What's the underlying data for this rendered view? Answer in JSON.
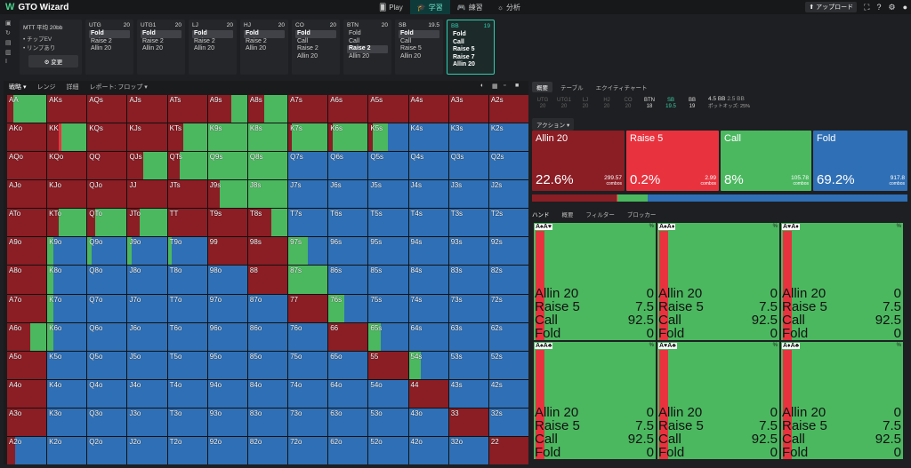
{
  "app": {
    "title": "GTO Wizard"
  },
  "nav": [
    {
      "label": "Play",
      "icon": "cards-icon",
      "active": false
    },
    {
      "label": "学習",
      "icon": "graduation-cap-icon",
      "active": true
    },
    {
      "label": "練習",
      "icon": "gamepad-icon",
      "active": false
    },
    {
      "label": "分析",
      "icon": "sun-icon",
      "active": false
    }
  ],
  "topright": {
    "upload": "アップロード"
  },
  "scenario": {
    "title": "MTT 平均 20bb",
    "opt1": "• チップEV",
    "opt2": "• リンプあり",
    "change": "⚙ 変更"
  },
  "positions": [
    {
      "name": "UTG",
      "stack": "20",
      "actions": [
        "Fold",
        "Raise 2",
        "Allin 20"
      ],
      "sel": 0
    },
    {
      "name": "UTG1",
      "stack": "20",
      "actions": [
        "Fold",
        "Raise 2",
        "Allin 20"
      ],
      "sel": 0
    },
    {
      "name": "LJ",
      "stack": "20",
      "actions": [
        "Fold",
        "Raise 2",
        "Allin 20"
      ],
      "sel": 0
    },
    {
      "name": "HJ",
      "stack": "20",
      "actions": [
        "Fold",
        "Raise 2",
        "Allin 20"
      ],
      "sel": 0
    },
    {
      "name": "CO",
      "stack": "20",
      "actions": [
        "Fold",
        "Call",
        "Raise 2",
        "Allin 20"
      ],
      "sel": 0
    },
    {
      "name": "BTN",
      "stack": "20",
      "actions": [
        "Fold",
        "Call",
        "Raise 2",
        "Allin 20"
      ],
      "sel": 2
    },
    {
      "name": "SB",
      "stack": "19.5",
      "actions": [
        "Fold",
        "Call",
        "Raise 5",
        "Allin 20"
      ],
      "sel": 0
    },
    {
      "name": "BB",
      "stack": "19",
      "actions": [
        "Fold",
        "Call",
        "Raise 5",
        "Raise 7",
        "Allin 20"
      ],
      "sel": -1
    }
  ],
  "lefttabs": [
    "戦略 ▾",
    "レンジ",
    "詳細",
    "レポート: フロップ ▾"
  ],
  "colors": {
    "allin": "#8b1d24",
    "raise": "#e8333f",
    "call": "#4bb860",
    "fold": "#2f6fb5"
  },
  "grid": {
    "rows": [
      [
        "AA",
        "AKs",
        "AQs",
        "AJs",
        "ATs",
        "A9s",
        "A8s",
        "A7s",
        "A6s",
        "A5s",
        "A4s",
        "A3s",
        "A2s"
      ],
      [
        "AKo",
        "KK",
        "KQs",
        "KJs",
        "KTs",
        "K9s",
        "K8s",
        "K7s",
        "K6s",
        "K5s",
        "K4s",
        "K3s",
        "K2s"
      ],
      [
        "AQo",
        "KQo",
        "QQ",
        "QJs",
        "QTs",
        "Q9s",
        "Q8s",
        "Q7s",
        "Q6s",
        "Q5s",
        "Q4s",
        "Q3s",
        "Q2s"
      ],
      [
        "AJo",
        "KJo",
        "QJo",
        "JJ",
        "JTs",
        "J9s",
        "J8s",
        "J7s",
        "J6s",
        "J5s",
        "J4s",
        "J3s",
        "J2s"
      ],
      [
        "ATo",
        "KTo",
        "QTo",
        "JTo",
        "TT",
        "T9s",
        "T8s",
        "T7s",
        "T6s",
        "T5s",
        "T4s",
        "T3s",
        "T2s"
      ],
      [
        "A9o",
        "K9o",
        "Q9o",
        "J9o",
        "T9o",
        "99",
        "98s",
        "97s",
        "96s",
        "95s",
        "94s",
        "93s",
        "92s"
      ],
      [
        "A8o",
        "K8o",
        "Q8o",
        "J8o",
        "T8o",
        "98o",
        "88",
        "87s",
        "86s",
        "85s",
        "84s",
        "83s",
        "82s"
      ],
      [
        "A7o",
        "K7o",
        "Q7o",
        "J7o",
        "T7o",
        "97o",
        "87o",
        "77",
        "76s",
        "75s",
        "74s",
        "73s",
        "72s"
      ],
      [
        "A6o",
        "K6o",
        "Q6o",
        "J6o",
        "T6o",
        "96o",
        "86o",
        "76o",
        "66",
        "65s",
        "64s",
        "63s",
        "62s"
      ],
      [
        "A5o",
        "K5o",
        "Q5o",
        "J5o",
        "T5o",
        "95o",
        "85o",
        "75o",
        "65o",
        "55",
        "54s",
        "53s",
        "52s"
      ],
      [
        "A4o",
        "K4o",
        "Q4o",
        "J4o",
        "T4o",
        "94o",
        "84o",
        "74o",
        "64o",
        "54o",
        "44",
        "43s",
        "42s"
      ],
      [
        "A3o",
        "K3o",
        "Q3o",
        "J3o",
        "T3o",
        "93o",
        "83o",
        "73o",
        "63o",
        "53o",
        "43o",
        "33",
        "32s"
      ],
      [
        "A2o",
        "K2o",
        "Q2o",
        "J2o",
        "T2o",
        "92o",
        "82o",
        "72o",
        "62o",
        "52o",
        "42o",
        "32o",
        "22"
      ]
    ]
  },
  "righttabs": [
    "概要",
    "テーブル",
    "エクイティチャート"
  ],
  "seats": [
    {
      "name": "UTG",
      "stack": "20"
    },
    {
      "name": "UTG1",
      "stack": "20"
    },
    {
      "name": "LJ",
      "stack": "20"
    },
    {
      "name": "HJ",
      "stack": "20"
    },
    {
      "name": "CO",
      "stack": "20"
    },
    {
      "name": "BTN",
      "stack": "18"
    },
    {
      "name": "SB",
      "stack": "19.5"
    },
    {
      "name": "BB",
      "stack": "19"
    }
  ],
  "pot": {
    "bb": "4.5 BB",
    "bb2": "2.5 BB",
    "odds": "ポットオッズ: 25%"
  },
  "actionHeader": "アクション ▾",
  "actions": [
    {
      "name": "Allin 20",
      "pct": "22.6%",
      "combos": "299.57",
      "unit": "combos",
      "color": "#8b1d24"
    },
    {
      "name": "Raise 5",
      "pct": "0.2%",
      "combos": "2.99",
      "unit": "combos",
      "color": "#e8333f"
    },
    {
      "name": "Call",
      "pct": "8%",
      "combos": "105.78",
      "unit": "combos",
      "color": "#4bb860"
    },
    {
      "name": "Fold",
      "pct": "69.2%",
      "combos": "917.8",
      "unit": "combos",
      "color": "#2f6fb5"
    }
  ],
  "freq": [
    22.6,
    0.2,
    8,
    69.2
  ],
  "handtabs": [
    "ハンド",
    "概要",
    "フィルター",
    "ブロッカー"
  ],
  "hands": [
    {
      "combo": "A♠A♥",
      "pct": "%",
      "vals": [
        [
          "Allin 20",
          "0"
        ],
        [
          "Raise 5",
          "7.5"
        ],
        [
          "Call",
          "92.5"
        ],
        [
          "Fold",
          "0"
        ]
      ]
    },
    {
      "combo": "A♠A♦",
      "pct": "%",
      "vals": [
        [
          "Allin 20",
          "0"
        ],
        [
          "Raise 5",
          "7.5"
        ],
        [
          "Call",
          "92.5"
        ],
        [
          "Fold",
          "0"
        ]
      ]
    },
    {
      "combo": "A♥A♦",
      "pct": "%",
      "vals": [
        [
          "Allin 20",
          "0"
        ],
        [
          "Raise 5",
          "7.5"
        ],
        [
          "Call",
          "92.5"
        ],
        [
          "Fold",
          "0"
        ]
      ]
    },
    {
      "combo": "A♠A♣",
      "pct": "%",
      "vals": [
        [
          "Allin 20",
          "0"
        ],
        [
          "Raise 5",
          "7.5"
        ],
        [
          "Call",
          "92.5"
        ],
        [
          "Fold",
          "0"
        ]
      ]
    },
    {
      "combo": "A♥A♣",
      "pct": "%",
      "vals": [
        [
          "Allin 20",
          "0"
        ],
        [
          "Raise 5",
          "7.5"
        ],
        [
          "Call",
          "92.5"
        ],
        [
          "Fold",
          "0"
        ]
      ]
    },
    {
      "combo": "A♦A♣",
      "pct": "%",
      "vals": [
        [
          "Allin 20",
          "0"
        ],
        [
          "Raise 5",
          "7.5"
        ],
        [
          "Call",
          "92.5"
        ],
        [
          "Fold",
          "0"
        ]
      ]
    }
  ]
}
